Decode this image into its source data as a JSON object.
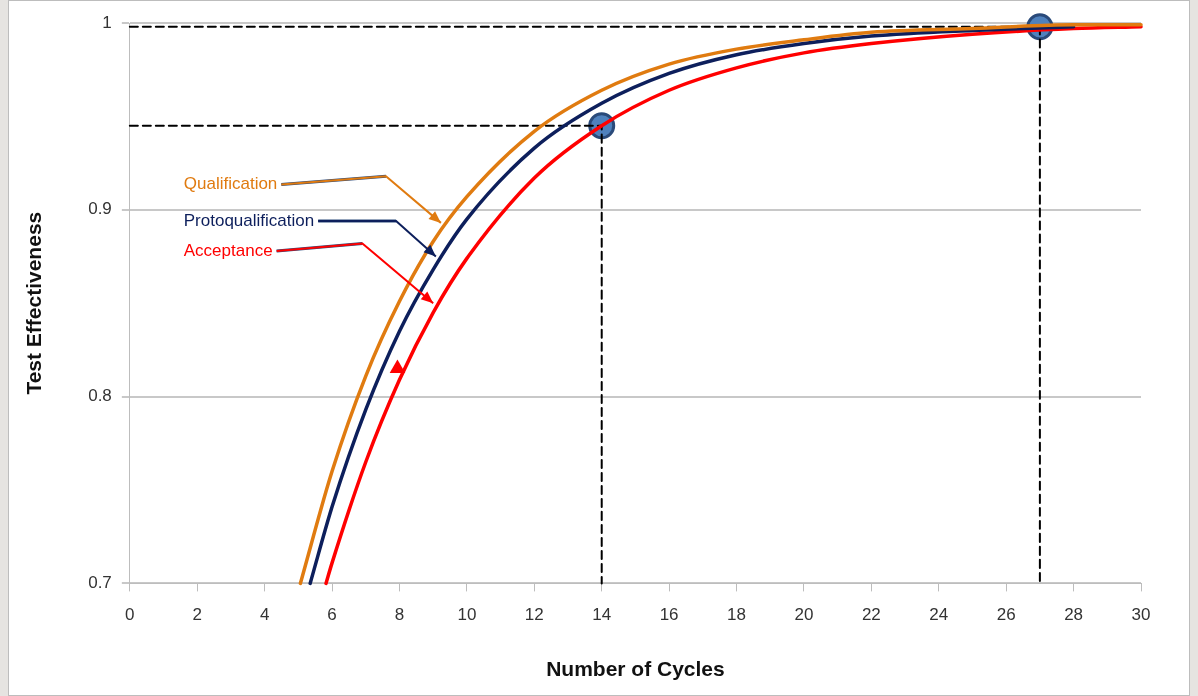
{
  "chart_data": {
    "type": "line",
    "xlabel": "Number of Cycles",
    "ylabel": "Test Effectiveness",
    "xlim": [
      0,
      30
    ],
    "xticks": [
      0,
      2,
      4,
      6,
      8,
      10,
      12,
      14,
      16,
      18,
      20,
      22,
      24,
      26,
      28,
      30
    ],
    "ylim": [
      0.7,
      1
    ],
    "yticks": [
      0.7,
      0.8,
      0.9,
      1
    ],
    "grid": "y",
    "legend": false,
    "series": [
      {
        "name": "Qualification",
        "type": "line",
        "color": "#e07b10",
        "x": [
          5.06,
          6,
          7,
          8,
          9,
          10,
          12,
          14,
          16,
          18,
          20,
          22,
          25,
          28,
          30
        ],
        "values": [
          0.7,
          0.76,
          0.811,
          0.851,
          0.883,
          0.907,
          0.942,
          0.964,
          0.978,
          0.986,
          0.991,
          0.995,
          0.997,
          0.999,
          0.999
        ]
      },
      {
        "name": "Protoqualification",
        "type": "line",
        "color": "#0d1f5c",
        "x": [
          5.35,
          6,
          7,
          8,
          9,
          10,
          12,
          14,
          16,
          18,
          20,
          22,
          25,
          28
        ],
        "values": [
          0.7,
          0.741,
          0.793,
          0.835,
          0.868,
          0.895,
          0.933,
          0.957,
          0.973,
          0.983,
          0.989,
          0.993,
          0.996,
          0.998
        ]
      },
      {
        "name": "Acceptance",
        "type": "line",
        "color": "#ff0000",
        "x": [
          5.82,
          6,
          7,
          8,
          9,
          10,
          12,
          14,
          16,
          18,
          20,
          22,
          25,
          28,
          30
        ],
        "values": [
          0.7,
          0.711,
          0.765,
          0.809,
          0.845,
          0.874,
          0.917,
          0.945,
          0.964,
          0.976,
          0.984,
          0.989,
          0.994,
          0.997,
          0.998
        ]
      },
      {
        "type": "line",
        "color": "#000000",
        "line_style": "dashed",
        "x": [
          0,
          14,
          14
        ],
        "values": [
          0.945,
          0.945,
          0.7
        ]
      },
      {
        "type": "line",
        "color": "#000000",
        "line_style": "dashed",
        "x": [
          0,
          27,
          27
        ],
        "values": [
          0.998,
          0.998,
          0.7
        ]
      },
      {
        "type": "scatter",
        "color": "#4f81bd",
        "marker": "circle",
        "x": [
          14,
          27
        ],
        "values": [
          0.945,
          0.998
        ]
      },
      {
        "type": "scatter",
        "color": "#ff0000",
        "marker": "triangle",
        "x": [
          7.94
        ],
        "values": [
          0.815
        ]
      }
    ]
  }
}
